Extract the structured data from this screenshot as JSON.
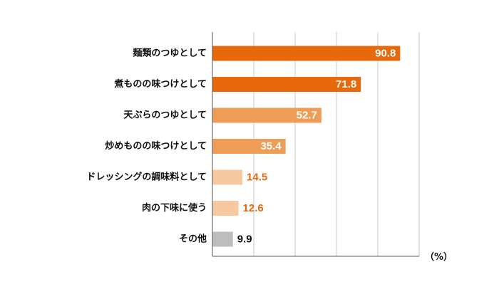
{
  "chart_data": {
    "type": "bar",
    "orientation": "horizontal",
    "categories": [
      "麺類のつゆとして",
      "煮ものの味つけとして",
      "天ぷらのつゆとして",
      "炒めものの味つけとして",
      "ドレッシングの調味料として",
      "肉の下味に使う",
      "その他"
    ],
    "values": [
      90.8,
      71.8,
      52.7,
      35.4,
      14.5,
      12.6,
      9.9
    ],
    "value_labels": [
      "90.8",
      "71.8",
      "52.7",
      "35.4",
      "14.5",
      "12.6",
      "9.9"
    ],
    "bar_colors": [
      "#e8690b",
      "#e8690b",
      "#ef9c57",
      "#ef9c57",
      "#f8c9a0",
      "#f8c9a0",
      "#bdbdbd"
    ],
    "label_colors": [
      "#ffffff",
      "#ffffff",
      "#ffffff",
      "#ffffff",
      "#e8690b",
      "#e8690b",
      "#111111"
    ],
    "label_inside": [
      true,
      true,
      true,
      true,
      false,
      false,
      false
    ],
    "unit_label": "（%）",
    "xlim": [
      0,
      100
    ],
    "grid": true,
    "title": "",
    "xlabel": "",
    "ylabel": ""
  }
}
